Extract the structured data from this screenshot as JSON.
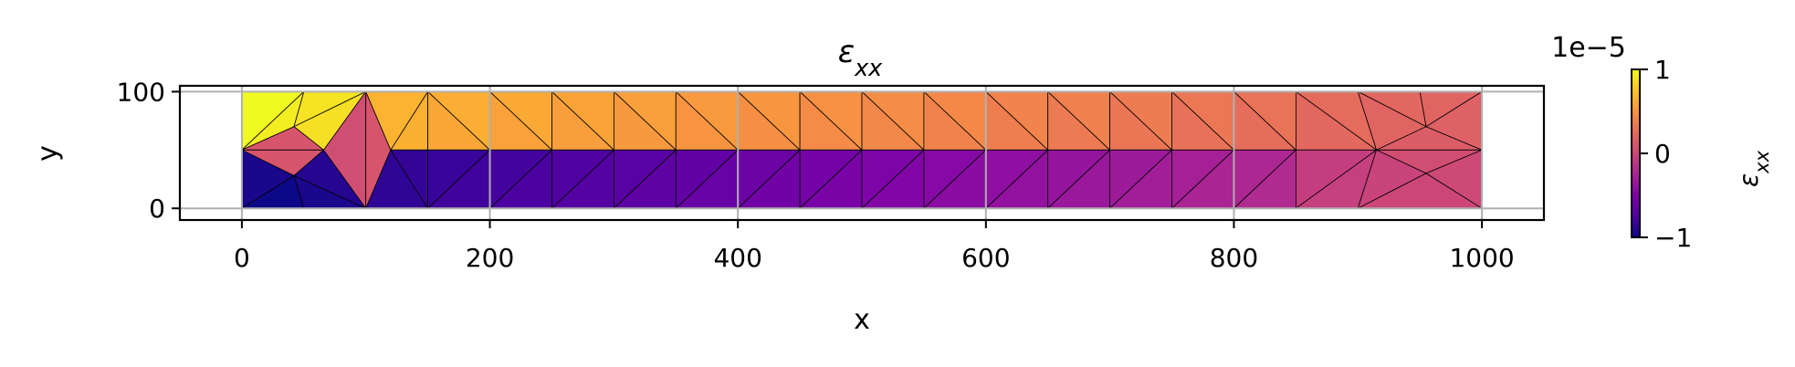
{
  "chart_data": {
    "type": "heatmap",
    "title": "ε_xx",
    "xlabel": "x",
    "ylabel": "y",
    "xlim": [
      -50,
      1050
    ],
    "ylim": [
      -10,
      105
    ],
    "x_ticks": [
      0,
      200,
      400,
      600,
      800,
      1000
    ],
    "y_ticks": [
      0,
      100
    ],
    "grid": true,
    "colormap": "plasma",
    "colorbar": {
      "label": "ε_xx",
      "offset_text": "1e−5",
      "range": [
        -1,
        1
      ],
      "ticks": [
        -1,
        0,
        1
      ],
      "tick_labels": [
        "−1",
        "0",
        "1"
      ]
    },
    "mesh_domain": {
      "x": [
        0,
        1000
      ],
      "y": [
        0,
        100
      ]
    },
    "field_summary": [
      {
        "region": "top-left corner",
        "value": 1.0
      },
      {
        "region": "bottom-left corner",
        "value": -1.0
      },
      {
        "region": "top edge x=100-200",
        "value": 0.65
      },
      {
        "region": "top edge x=400-600",
        "value": 0.45
      },
      {
        "region": "top edge x=800-1000",
        "value": 0.22
      },
      {
        "region": "bottom edge x=100-200",
        "value": -0.85
      },
      {
        "region": "bottom edge x=400-600",
        "value": -0.55
      },
      {
        "region": "bottom edge x=800-1000",
        "value": -0.05
      },
      {
        "region": "right end x=950-1000",
        "value": 0.1
      }
    ]
  }
}
